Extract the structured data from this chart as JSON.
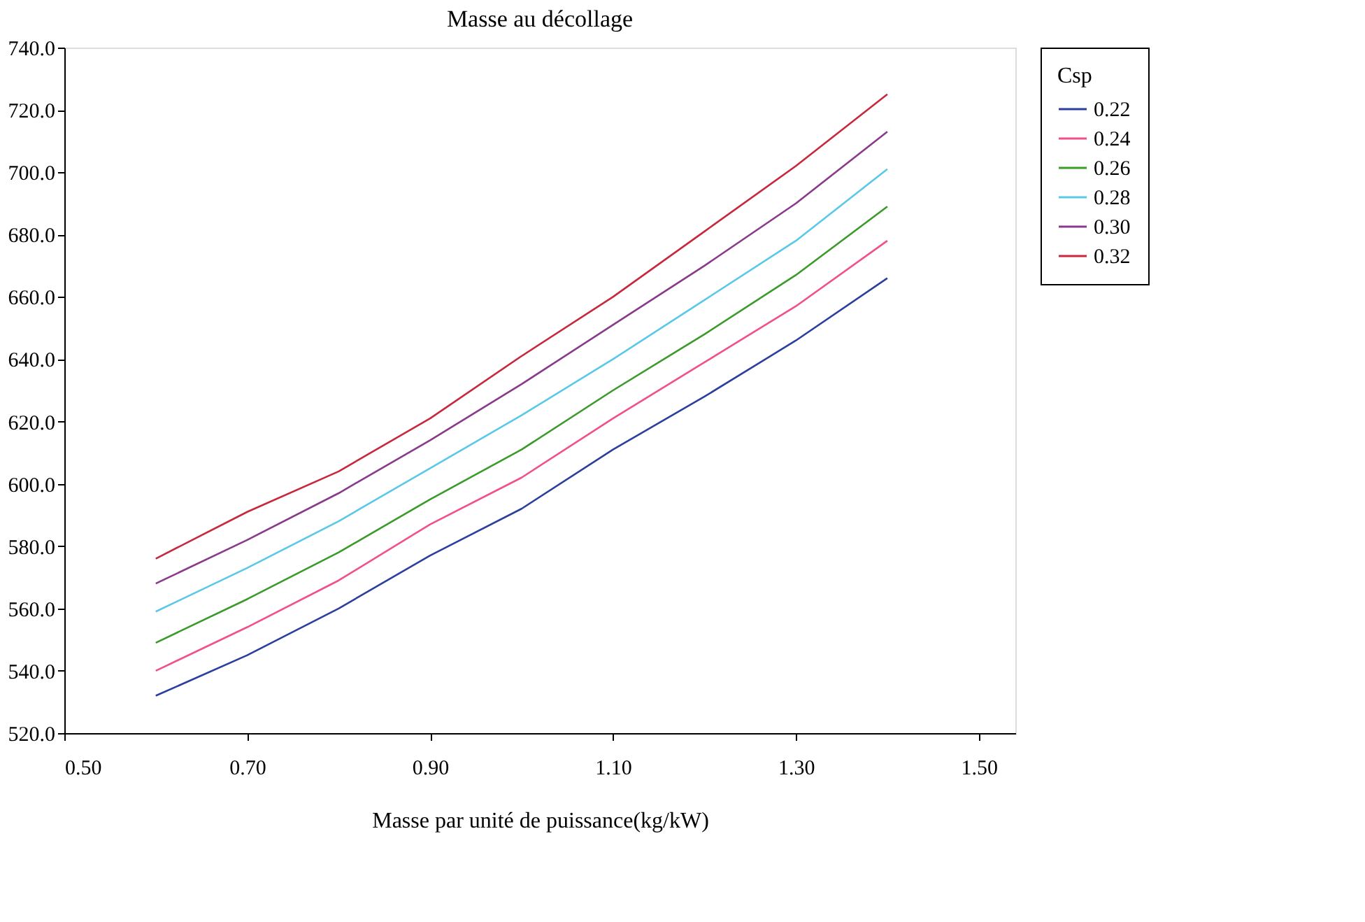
{
  "chart_data": {
    "type": "line",
    "title": "Masse au décollage",
    "xlabel": "Masse par unité de puissance(kg/kW)",
    "legend_title": "Csp",
    "x": [
      0.6,
      0.7,
      0.8,
      0.9,
      1.0,
      1.1,
      1.2,
      1.3,
      1.4
    ],
    "series": [
      {
        "name": "0.22",
        "color": "#2b3f9e",
        "values": [
          532,
          545,
          560,
          577,
          592,
          611,
          628,
          646,
          666
        ]
      },
      {
        "name": "0.24",
        "color": "#f0508c",
        "values": [
          540,
          554,
          569,
          587,
          602,
          621,
          639,
          657,
          678
        ]
      },
      {
        "name": "0.26",
        "color": "#3a9a2a",
        "values": [
          549,
          563,
          578,
          595,
          611,
          630,
          648,
          667,
          689
        ]
      },
      {
        "name": "0.28",
        "color": "#5ac8e8",
        "values": [
          559,
          573,
          588,
          605,
          622,
          640,
          659,
          678,
          701
        ]
      },
      {
        "name": "0.30",
        "color": "#8a3a8a",
        "values": [
          568,
          582,
          597,
          614,
          632,
          651,
          670,
          690,
          713
        ]
      },
      {
        "name": "0.32",
        "color": "#c8283c",
        "values": [
          576,
          591,
          604,
          621,
          641,
          660,
          681,
          702,
          725
        ]
      }
    ],
    "xlim": [
      0.5,
      1.54
    ],
    "xticks": [
      {
        "value": 0.5,
        "label": "0.50"
      },
      {
        "value": 0.7,
        "label": "0.70"
      },
      {
        "value": 0.9,
        "label": "0.90"
      },
      {
        "value": 1.1,
        "label": "1.10"
      },
      {
        "value": 1.3,
        "label": "1.30"
      },
      {
        "value": 1.5,
        "label": "1.50"
      }
    ],
    "ylim": [
      520,
      740
    ],
    "yticks": [
      {
        "value": 520,
        "label": "520.0"
      },
      {
        "value": 540,
        "label": "540.0"
      },
      {
        "value": 560,
        "label": "560.0"
      },
      {
        "value": 580,
        "label": "580.0"
      },
      {
        "value": 600,
        "label": "600.0"
      },
      {
        "value": 620,
        "label": "620.0"
      },
      {
        "value": 640,
        "label": "640.0"
      },
      {
        "value": 660,
        "label": "660.0"
      },
      {
        "value": 680,
        "label": "680.0"
      },
      {
        "value": 700,
        "label": "700.0"
      },
      {
        "value": 720,
        "label": "720.0"
      },
      {
        "value": 740,
        "label": "740.0"
      }
    ],
    "grid": false,
    "legend": "right",
    "marker": "none",
    "line_style": "solid"
  }
}
